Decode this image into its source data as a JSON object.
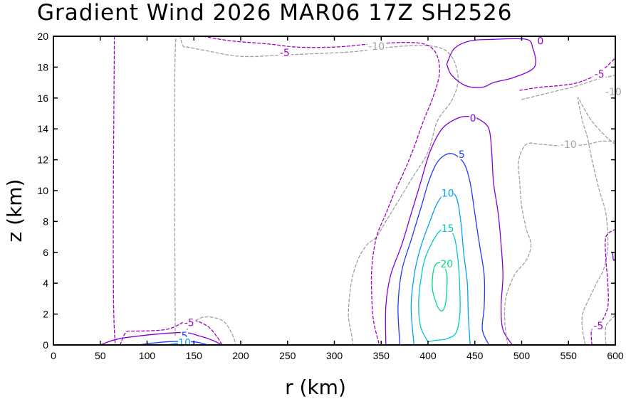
{
  "chart_data": {
    "type": "contour",
    "title": "Gradient Wind 2026 MAR06 17Z   SH2526",
    "xlabel": "r (km)",
    "ylabel": "z (km)",
    "xlim": [
      0,
      600
    ],
    "ylim": [
      0,
      20
    ],
    "xticks": [
      0,
      50,
      100,
      150,
      200,
      250,
      300,
      350,
      400,
      450,
      500,
      550,
      600
    ],
    "yticks": [
      0,
      2,
      4,
      6,
      8,
      10,
      12,
      14,
      16,
      18,
      20
    ],
    "levels": [
      {
        "value": -10,
        "label": "-10",
        "color": "#a0a0a0",
        "dashed": true
      },
      {
        "value": -5,
        "label": "-5",
        "color": "#a000c8",
        "dashed": true
      },
      {
        "value": 0,
        "label": "0",
        "color": "#8200dc",
        "dashed": false
      },
      {
        "value": 5,
        "label": "5",
        "color": "#1e3cff",
        "dashed": false
      },
      {
        "value": 10,
        "label": "10",
        "color": "#00a0ff",
        "dashed": false
      },
      {
        "value": 15,
        "label": "15",
        "color": "#00c8c8",
        "dashed": false
      },
      {
        "value": 20,
        "label": "20",
        "color": "#00dc82",
        "dashed": false
      }
    ],
    "contours": [
      {
        "level": -5,
        "points": [
          [
            65,
            20
          ],
          [
            65,
            1.0
          ],
          [
            80,
            0.9
          ],
          [
            120,
            1.0
          ],
          [
            140,
            1.5
          ],
          [
            150,
            1.6
          ],
          [
            165,
            1.2
          ],
          [
            175,
            0.5
          ],
          [
            180,
            0
          ]
        ]
      },
      {
        "level": -10,
        "points": [
          [
            130,
            0.6
          ],
          [
            130,
            19.0
          ],
          [
            140,
            19.3
          ],
          [
            160,
            19.1
          ],
          [
            200,
            18.7
          ],
          [
            250,
            18.8
          ],
          [
            320,
            19.0
          ],
          [
            360,
            19.3
          ],
          [
            395,
            19.4
          ],
          [
            415,
            19.2
          ],
          [
            425,
            18.7
          ],
          [
            430,
            18.0
          ],
          [
            432,
            17.0
          ],
          [
            425,
            15.8
          ],
          [
            410,
            14.5
          ],
          [
            400,
            12.5
          ],
          [
            385,
            11.0
          ],
          [
            370,
            9.5
          ],
          [
            355,
            8.0
          ],
          [
            345,
            7.0
          ],
          [
            335,
            6.5
          ],
          [
            325,
            5.5
          ],
          [
            318,
            4.0
          ],
          [
            315,
            2.0
          ],
          [
            318,
            0.8
          ],
          [
            320,
            0
          ]
        ]
      },
      {
        "level": -10,
        "points": [
          [
            135,
            0
          ],
          [
            145,
            1.2
          ],
          [
            160,
            1.8
          ],
          [
            180,
            1.6
          ],
          [
            190,
            0.8
          ],
          [
            195,
            0
          ]
        ]
      },
      {
        "level": 0,
        "points": [
          [
            50,
            0
          ],
          [
            70,
            0.4
          ],
          [
            110,
            0.7
          ],
          [
            140,
            0.8
          ],
          [
            155,
            0.6
          ],
          [
            170,
            0.3
          ],
          [
            180,
            0
          ]
        ]
      },
      {
        "level": 5,
        "points": [
          [
            90,
            0
          ],
          [
            120,
            0.2
          ],
          [
            150,
            0.2
          ],
          [
            165,
            0
          ]
        ]
      },
      {
        "level": 10,
        "points": [
          [
            120,
            0
          ],
          [
            135,
            0.1
          ],
          [
            150,
            0
          ]
        ]
      },
      {
        "level": -5,
        "points": [
          [
            160,
            20
          ],
          [
            190,
            19.7
          ],
          [
            230,
            19.5
          ],
          [
            260,
            19.3
          ],
          [
            300,
            19.3
          ],
          [
            340,
            19.5
          ],
          [
            380,
            19.6
          ],
          [
            400,
            19.4
          ],
          [
            410,
            18.7
          ],
          [
            412,
            17.5
          ],
          [
            405,
            16.0
          ],
          [
            395,
            14.5
          ],
          [
            385,
            12.8
          ],
          [
            375,
            11.3
          ],
          [
            365,
            10.0
          ],
          [
            355,
            8.5
          ],
          [
            345,
            7.0
          ],
          [
            340,
            5.0
          ],
          [
            340,
            3.0
          ],
          [
            342,
            1.5
          ],
          [
            348,
            0
          ]
        ]
      },
      {
        "level": 0,
        "points": [
          [
            355,
            0
          ],
          [
            355,
            2.5
          ],
          [
            360,
            4.5
          ],
          [
            372,
            6.5
          ],
          [
            382,
            8.5
          ],
          [
            392,
            10.5
          ],
          [
            402,
            12.5
          ],
          [
            415,
            14.0
          ],
          [
            432,
            14.7
          ],
          [
            445,
            14.8
          ],
          [
            455,
            14.6
          ],
          [
            465,
            14.0
          ],
          [
            468,
            12.5
          ],
          [
            470,
            10.5
          ],
          [
            475,
            8.5
          ],
          [
            478,
            6.5
          ],
          [
            480,
            4.5
          ],
          [
            478,
            2.5
          ],
          [
            480,
            1.0
          ],
          [
            490,
            0
          ]
        ]
      },
      {
        "level": 5,
        "points": [
          [
            370,
            0
          ],
          [
            368,
            2.5
          ],
          [
            372,
            4.8
          ],
          [
            382,
            6.8
          ],
          [
            392,
            8.8
          ],
          [
            402,
            10.8
          ],
          [
            412,
            12.0
          ],
          [
            425,
            12.4
          ],
          [
            438,
            11.8
          ],
          [
            445,
            10.5
          ],
          [
            450,
            8.5
          ],
          [
            455,
            6.5
          ],
          [
            460,
            4.5
          ],
          [
            460,
            2.5
          ],
          [
            458,
            1.0
          ],
          [
            465,
            0
          ]
        ]
      },
      {
        "level": 10,
        "points": [
          [
            385,
            0
          ],
          [
            382,
            2.5
          ],
          [
            386,
            4.8
          ],
          [
            393,
            6.5
          ],
          [
            402,
            8.0
          ],
          [
            410,
            9.2
          ],
          [
            420,
            9.9
          ],
          [
            430,
            9.6
          ],
          [
            435,
            8.0
          ],
          [
            438,
            6.0
          ],
          [
            442,
            4.0
          ],
          [
            443,
            2.0
          ],
          [
            445,
            0
          ]
        ]
      },
      {
        "level": 15,
        "points": [
          [
            400,
            0.2
          ],
          [
            392,
            1.2
          ],
          [
            390,
            2.8
          ],
          [
            393,
            4.5
          ],
          [
            398,
            5.8
          ],
          [
            410,
            7.2
          ],
          [
            420,
            7.6
          ],
          [
            428,
            7.0
          ],
          [
            432,
            5.5
          ],
          [
            434,
            3.5
          ],
          [
            434,
            2.0
          ],
          [
            430,
            0.8
          ],
          [
            420,
            0.4
          ],
          [
            408,
            0.3
          ],
          [
            400,
            0.2
          ]
        ]
      },
      {
        "level": 20,
        "points": [
          [
            410,
            2.5
          ],
          [
            405,
            3.5
          ],
          [
            405,
            4.5
          ],
          [
            408,
            5.2
          ],
          [
            415,
            5.3
          ],
          [
            420,
            4.6
          ],
          [
            420,
            3.5
          ],
          [
            418,
            2.5
          ],
          [
            414,
            2.2
          ],
          [
            410,
            2.5
          ]
        ]
      },
      {
        "level": 0,
        "points": [
          [
            420,
            18.2
          ],
          [
            428,
            19.2
          ],
          [
            445,
            19.7
          ],
          [
            470,
            19.8
          ],
          [
            505,
            19.8
          ],
          [
            512,
            19.2
          ],
          [
            515,
            18.3
          ],
          [
            510,
            17.8
          ],
          [
            490,
            17.3
          ],
          [
            470,
            17.0
          ],
          [
            458,
            16.7
          ],
          [
            440,
            16.8
          ],
          [
            425,
            17.5
          ],
          [
            420,
            18.2
          ]
        ]
      },
      {
        "level": -5,
        "points": [
          [
            498,
            16.5
          ],
          [
            520,
            16.7
          ],
          [
            540,
            16.8
          ],
          [
            560,
            17.0
          ],
          [
            580,
            17.5
          ],
          [
            590,
            18.0
          ],
          [
            600,
            18.6
          ]
        ]
      },
      {
        "level": -10,
        "points": [
          [
            500,
            15.9
          ],
          [
            520,
            16.2
          ],
          [
            540,
            16.5
          ],
          [
            560,
            16.8
          ],
          [
            580,
            17.2
          ],
          [
            595,
            17.4
          ],
          [
            600,
            17.5
          ]
        ]
      },
      {
        "level": -10,
        "points": [
          [
            600,
            13.0
          ],
          [
            590,
            13.5
          ],
          [
            575,
            14.5
          ],
          [
            565,
            15.5
          ],
          [
            560,
            16.0
          ],
          [
            565,
            14.5
          ],
          [
            570,
            13.5
          ],
          [
            575,
            12.0
          ],
          [
            583,
            10.0
          ],
          [
            590,
            8.5
          ],
          [
            592,
            6.5
          ],
          [
            588,
            5.0
          ],
          [
            580,
            4.0
          ],
          [
            572,
            3.0
          ],
          [
            565,
            2.0
          ],
          [
            565,
            1.0
          ],
          [
            568,
            0
          ]
        ]
      },
      {
        "level": -10,
        "points": [
          [
            485,
            0
          ],
          [
            482,
            1.5
          ],
          [
            483,
            3.0
          ],
          [
            492,
            4.5
          ],
          [
            505,
            5.5
          ],
          [
            510,
            6.5
          ],
          [
            505,
            7.5
          ],
          [
            500,
            9.0
          ],
          [
            498,
            10.5
          ],
          [
            497,
            12.0
          ],
          [
            505,
            13.0
          ],
          [
            520,
            13.0
          ],
          [
            540,
            12.9
          ],
          [
            555,
            12.9
          ],
          [
            570,
            13.0
          ],
          [
            585,
            13.2
          ],
          [
            600,
            13.2
          ]
        ]
      },
      {
        "level": -5,
        "points": [
          [
            575,
            0
          ],
          [
            575,
            1.0
          ],
          [
            585,
            1.5
          ],
          [
            592,
            2.5
          ],
          [
            592,
            4.0
          ],
          [
            590,
            5.5
          ],
          [
            590,
            7.0
          ],
          [
            600,
            7.5
          ]
        ]
      },
      {
        "level": -10,
        "points": [
          [
            590,
            0
          ],
          [
            590,
            1.2
          ],
          [
            598,
            1.8
          ],
          [
            600,
            2.0
          ]
        ]
      },
      {
        "level": 0,
        "points": [
          [
            597,
            6.0
          ],
          [
            598,
            5.5
          ],
          [
            600,
            5.6
          ]
        ]
      }
    ],
    "contour_labels": [
      {
        "text": "-5",
        "r": 247,
        "z": 18.95,
        "level": -5
      },
      {
        "text": "-10",
        "r": 345,
        "z": 19.35,
        "level": -10
      },
      {
        "text": "0",
        "r": 520,
        "z": 19.7,
        "level": 0
      },
      {
        "text": "-5",
        "r": 583,
        "z": 17.55,
        "level": -5
      },
      {
        "text": "-10",
        "r": 598,
        "z": 16.4,
        "level": -10
      },
      {
        "text": "0",
        "r": 448,
        "z": 14.7,
        "level": 0
      },
      {
        "text": "-10",
        "r": 550,
        "z": 13.0,
        "level": -10
      },
      {
        "text": "5",
        "r": 436,
        "z": 12.35,
        "level": 5
      },
      {
        "text": "10",
        "r": 421,
        "z": 9.85,
        "level": 10
      },
      {
        "text": "15",
        "r": 421,
        "z": 7.55,
        "level": 15
      },
      {
        "text": "20",
        "r": 420,
        "z": 5.25,
        "level": 20
      },
      {
        "text": "-5",
        "r": 145,
        "z": 1.45,
        "level": -5
      },
      {
        "text": "5",
        "r": 140,
        "z": 0.6,
        "level": 5
      },
      {
        "text": "10",
        "r": 140,
        "z": 0.15,
        "level": 10
      },
      {
        "text": "-5",
        "r": 582,
        "z": 1.25,
        "level": -5
      }
    ]
  }
}
